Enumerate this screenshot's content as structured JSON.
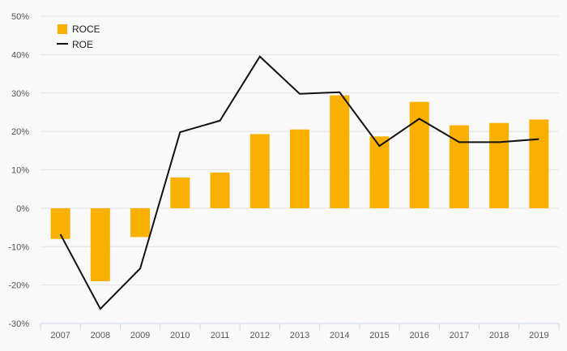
{
  "chart_data": {
    "type": "bar",
    "categories": [
      "2007",
      "2008",
      "2009",
      "2010",
      "2011",
      "2012",
      "2013",
      "2014",
      "2015",
      "2016",
      "2017",
      "2018",
      "2019"
    ],
    "series": [
      {
        "name": "ROCE",
        "type": "bar",
        "color": "#f9b000",
        "values": [
          -8,
          -19,
          -7.5,
          8,
          9.3,
          19.3,
          20.5,
          29.4,
          18.7,
          27.7,
          21.6,
          22.2,
          23.1
        ]
      },
      {
        "name": "ROE",
        "type": "line",
        "color": "#111111",
        "values": [
          -6.8,
          -26.2,
          -15.7,
          19.8,
          22.8,
          39.5,
          29.8,
          30.2,
          16.2,
          23.3,
          17.2,
          17.2,
          18
        ]
      }
    ],
    "title": "",
    "xlabel": "",
    "ylabel": "",
    "ylim": [
      -30,
      50
    ],
    "yticks": [
      50,
      40,
      30,
      20,
      10,
      0,
      -10,
      -20,
      -30
    ],
    "ytick_labels": [
      "50%",
      "40%",
      "30%",
      "20%",
      "10%",
      "0%",
      "-10%",
      "-20%",
      "-30%"
    ],
    "grid": true,
    "legend_position": "top-left"
  }
}
